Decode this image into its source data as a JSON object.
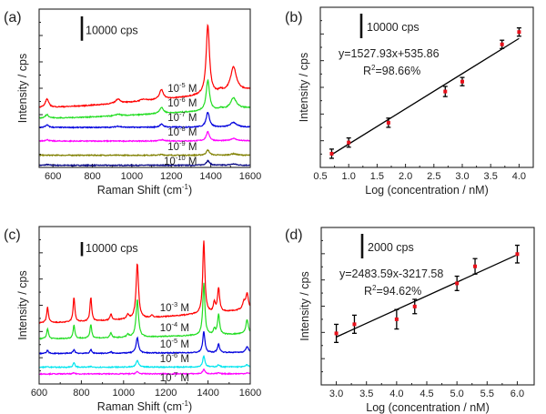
{
  "chart_data": [
    {
      "panel": "(a)",
      "type": "line",
      "xlabel": "Raman Shift (cm",
      "xlabel_sup": "-1",
      "xlabel_end": ")",
      "ylabel": "Intensity / cps",
      "xlim": [
        530,
        1600
      ],
      "ylim": [
        0,
        65000
      ],
      "xticks": [
        600,
        800,
        1000,
        1200,
        1400,
        1600
      ],
      "scale_bar": {
        "value": 10000,
        "label": "10000 cps"
      },
      "series": [
        {
          "label": {
            "base": "10",
            "exp": "-10",
            "unit": " M"
          },
          "color": "#000080",
          "baseline": [
            870,
            900
          ],
          "peaks": [
            [
              1385,
              1900,
              10
            ],
            [
              1515,
              500,
              18
            ],
            [
              570,
              300,
              10
            ]
          ]
        },
        {
          "label": {
            "base": "10",
            "exp": "-9",
            "unit": " M"
          },
          "color": "#808000",
          "baseline": [
            5000,
            5000
          ],
          "peaks": [
            [
              1385,
              2100,
              10
            ],
            [
              1515,
              600,
              18
            ],
            [
              1150,
              300,
              12
            ]
          ]
        },
        {
          "label": {
            "base": "10",
            "exp": "-8",
            "unit": " M"
          },
          "color": "#ff00ff",
          "baseline": [
            10800,
            10900
          ],
          "peaks": [
            [
              1385,
              3700,
              10
            ],
            [
              1515,
              1000,
              18
            ],
            [
              1150,
              500,
              12
            ],
            [
              570,
              600,
              10
            ]
          ]
        },
        {
          "label": {
            "base": "10",
            "exp": "-7",
            "unit": " M"
          },
          "color": "#0000dd",
          "baseline": [
            16400,
            16600
          ],
          "peaks": [
            [
              1385,
              6200,
              10
            ],
            [
              1515,
              1900,
              18
            ],
            [
              1150,
              1200,
              12
            ],
            [
              570,
              1000,
              10
            ],
            [
              930,
              500,
              14
            ]
          ]
        },
        {
          "label": {
            "base": "10",
            "exp": "-6",
            "unit": " M"
          },
          "color": "#22dd22",
          "baseline": [
            20200,
            24500
          ],
          "peaks": [
            [
              1385,
              12500,
              10
            ],
            [
              1515,
              4500,
              18
            ],
            [
              1150,
              2500,
              12
            ],
            [
              570,
              1500,
              10
            ],
            [
              930,
              700,
              14
            ],
            [
              1450,
              600,
              10
            ]
          ]
        },
        {
          "label": {
            "base": "10",
            "exp": "-5",
            "unit": " M"
          },
          "color": "#ff0000",
          "baseline": [
            24600,
            32000
          ],
          "peaks": [
            [
              1385,
              28400,
              10
            ],
            [
              1515,
              10000,
              18
            ],
            [
              1150,
              4000,
              12
            ],
            [
              570,
              3500,
              10
            ],
            [
              930,
              1800,
              14
            ],
            [
              1450,
              1000,
              10
            ],
            [
              1060,
              800,
              20
            ]
          ]
        }
      ]
    },
    {
      "panel": "(b)",
      "type": "scatter",
      "xlabel": "Log (concentration / nM)",
      "ylabel": "Intensity / cps",
      "xlim": [
        0.5,
        4.25
      ],
      "ylim": [
        1050,
        8000
      ],
      "xticks": [
        "0.5",
        "1.0",
        "1.5",
        "2.0",
        "2.5",
        "3.0",
        "3.5",
        "4.0"
      ],
      "scale_bar": {
        "label": "10000 cps"
      },
      "equation": "y=1527.93x+535.86",
      "r2_label": "R",
      "r2_sup": "2",
      "r2_value": "=98.66%",
      "fit": {
        "slope": 1527.93,
        "intercept": 535.86,
        "x_range": [
          0.7,
          4.0
        ]
      },
      "x": [
        0.7,
        1.0,
        1.7,
        2.7,
        3.0,
        3.7,
        4.0
      ],
      "y": [
        1645,
        2130,
        2990,
        4345,
        4775,
        6390,
        6925
      ],
      "yerr": [
        200,
        200,
        200,
        220,
        180,
        180,
        180
      ],
      "point_color": "#e8101a"
    },
    {
      "panel": "(c)",
      "type": "line",
      "xlabel": "Raman Shift (cm",
      "xlabel_sup": "-1",
      "xlabel_end": ")",
      "ylabel": "Intensity / cps",
      "xlim": [
        600,
        1600
      ],
      "ylim": [
        0,
        112000
      ],
      "xticks": [
        600,
        800,
        1000,
        1200,
        1400,
        1600
      ],
      "scale_bar": {
        "value": 10000,
        "label": "10000 cps"
      },
      "series": [
        {
          "label": {
            "base": "10",
            "exp": "-7",
            "unit": " M"
          },
          "color": "#ff00ff",
          "baseline": [
            7160,
            7300
          ],
          "peaks": [
            [
              1380,
              3250,
              6
            ],
            [
              1065,
              1500,
              7
            ],
            [
              765,
              700,
              5
            ],
            [
              1450,
              600,
              6
            ],
            [
              1585,
              600,
              7
            ]
          ]
        },
        {
          "label": {
            "base": "10",
            "exp": "-6",
            "unit": " M"
          },
          "color": "#00e5ee",
          "baseline": [
            11900,
            12200
          ],
          "peaks": [
            [
              1380,
              8000,
              6
            ],
            [
              1065,
              4800,
              7
            ],
            [
              765,
              3200,
              5
            ],
            [
              1450,
              1500,
              6
            ],
            [
              1585,
              1500,
              7
            ],
            [
              640,
              500,
              5
            ],
            [
              845,
              500,
              5
            ]
          ]
        },
        {
          "label": {
            "base": "10",
            "exp": "-5",
            "unit": " M"
          },
          "color": "#0000dd",
          "baseline": [
            21700,
            22500
          ],
          "peaks": [
            [
              1380,
              15200,
              6
            ],
            [
              1065,
              10900,
              7
            ],
            [
              1450,
              6000,
              6
            ],
            [
              640,
              2200,
              5
            ],
            [
              765,
              2800,
              5
            ],
            [
              845,
              2600,
              5
            ],
            [
              940,
              1000,
              5
            ],
            [
              1585,
              4300,
              7
            ]
          ]
        },
        {
          "label": {
            "base": "10",
            "exp": "-4",
            "unit": " M"
          },
          "color": "#22dd22",
          "baseline": [
            32100,
            35800
          ],
          "peaks": [
            [
              1380,
              36900,
              6
            ],
            [
              1065,
              26500,
              7
            ],
            [
              1450,
              14300,
              6
            ],
            [
              640,
              7400,
              5
            ],
            [
              765,
              9500,
              5
            ],
            [
              845,
              9800,
              5
            ],
            [
              940,
              3500,
              5
            ],
            [
              1020,
              2000,
              6
            ],
            [
              1585,
              10000,
              7
            ],
            [
              1430,
              4000,
              5
            ]
          ]
        },
        {
          "label": {
            "base": "10",
            "exp": "-3",
            "unit": " M"
          },
          "color": "#ff0000",
          "baseline": [
            43400,
            53100
          ],
          "peaks": [
            [
              1380,
              52000,
              6
            ],
            [
              1065,
              39000,
              7
            ],
            [
              1450,
              17000,
              6
            ],
            [
              640,
              11300,
              5
            ],
            [
              765,
              17300,
              5
            ],
            [
              845,
              16900,
              5
            ],
            [
              940,
              4500,
              5
            ],
            [
              1020,
              3000,
              6
            ],
            [
              1135,
              1500,
              6
            ],
            [
              1585,
              11000,
              7
            ],
            [
              1570,
              5000,
              8
            ],
            [
              1430,
              7000,
              5
            ]
          ]
        }
      ]
    },
    {
      "panel": "(d)",
      "type": "scatter",
      "xlabel": "Log (concentration / nM)",
      "ylabel": "Intensity / cps",
      "xlim": [
        2.75,
        6.28
      ],
      "ylim": [
        -100,
        14150
      ],
      "xticks": [
        "3.0",
        "3.5",
        "4.0",
        "4.5",
        "5.0",
        "5.5",
        "6.0"
      ],
      "scale_bar": {
        "label": "2000 cps"
      },
      "equation": "y=2483.59x-3217.58",
      "r2_label": "R",
      "r2_sup": "2",
      "r2_value": "=94.62%",
      "fit": {
        "slope": 2483.59,
        "intercept": -3217.58,
        "x_range": [
          3.0,
          6.0
        ]
      },
      "x": [
        3.0,
        3.3,
        4.0,
        4.3,
        5.0,
        5.3,
        6.0
      ],
      "y": [
        4562,
        5389,
        5840,
        6996,
        9090,
        10630,
        11740
      ],
      "yerr": [
        820,
        820,
        880,
        650,
        650,
        700,
        800
      ],
      "point_color": "#e8101a"
    }
  ]
}
